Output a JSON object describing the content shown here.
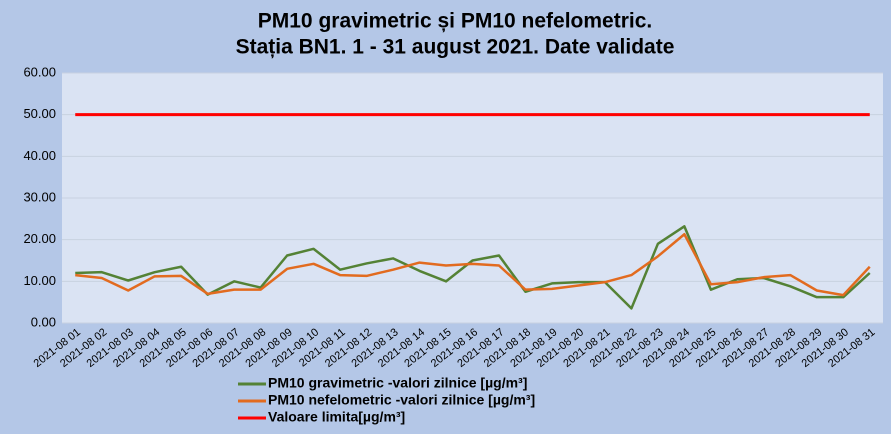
{
  "chart_data": {
    "type": "line",
    "title": [
      "PM10 gravimetric și PM10 nefelometric.",
      "Stația BN1. 1 - 31 august 2021. Date validate"
    ],
    "categories": [
      "2021-08 01",
      "2021-08 02",
      "2021-08 03",
      "2021-08 04",
      "2021-08 05",
      "2021-08 06",
      "2021-08 07",
      "2021-08 08",
      "2021-08 09",
      "2021-08 10",
      "2021-08 11",
      "2021-08 12",
      "2021-08 13",
      "2021-08 14",
      "2021-08 15",
      "2021-08 16",
      "2021-08 17",
      "2021-08 18",
      "2021-08 19",
      "2021-08 20",
      "2021-08 21",
      "2021-08 22",
      "2021-08 23",
      "2021-08 24",
      "2021-08 25",
      "2021-08 26",
      "2021-08 27",
      "2021-08 28",
      "2021-08 29",
      "2021-08 30",
      "2021-08 31"
    ],
    "series": [
      {
        "name": "PM10 gravimetric -valori zilnice [µg/m³]",
        "color": "#548235",
        "values": [
          12,
          12.2,
          10.2,
          12.2,
          13.5,
          6.8,
          10,
          8.5,
          16.2,
          17.8,
          12.8,
          14.3,
          15.5,
          12.5,
          10,
          15,
          16.2,
          7.5,
          9.5,
          9.8,
          9.8,
          3.5,
          19,
          23.2,
          8,
          10.5,
          10.8,
          8.8,
          6.2,
          6.2,
          12
        ]
      },
      {
        "name": "PM10 nefelometric -valori zilnice [µg/m³]",
        "color": "#e26b1f",
        "values": [
          11.5,
          10.8,
          7.8,
          11.2,
          11.3,
          7,
          8,
          8,
          13,
          14.2,
          11.5,
          11.3,
          12.8,
          14.5,
          13.8,
          14.2,
          13.8,
          8,
          8.2,
          9,
          9.8,
          11.5,
          16,
          21.3,
          9.3,
          9.8,
          11,
          11.5,
          7.8,
          6.7,
          13.5
        ]
      },
      {
        "name": "Valoare limita[µg/m³]",
        "color": "#ff0000",
        "values": [
          50,
          50,
          50,
          50,
          50,
          50,
          50,
          50,
          50,
          50,
          50,
          50,
          50,
          50,
          50,
          50,
          50,
          50,
          50,
          50,
          50,
          50,
          50,
          50,
          50,
          50,
          50,
          50,
          50,
          50,
          50
        ]
      }
    ],
    "ylim": [
      0,
      60
    ],
    "yticks": [
      {
        "value": 0,
        "label": "0.00"
      },
      {
        "value": 10,
        "label": "10.00"
      },
      {
        "value": 20,
        "label": "20.00"
      },
      {
        "value": 30,
        "label": "30.00"
      },
      {
        "value": 40,
        "label": "40.00"
      },
      {
        "value": 50,
        "label": "50.00"
      },
      {
        "value": 60,
        "label": "60.00"
      }
    ],
    "grid": true,
    "legend": "bottom"
  }
}
